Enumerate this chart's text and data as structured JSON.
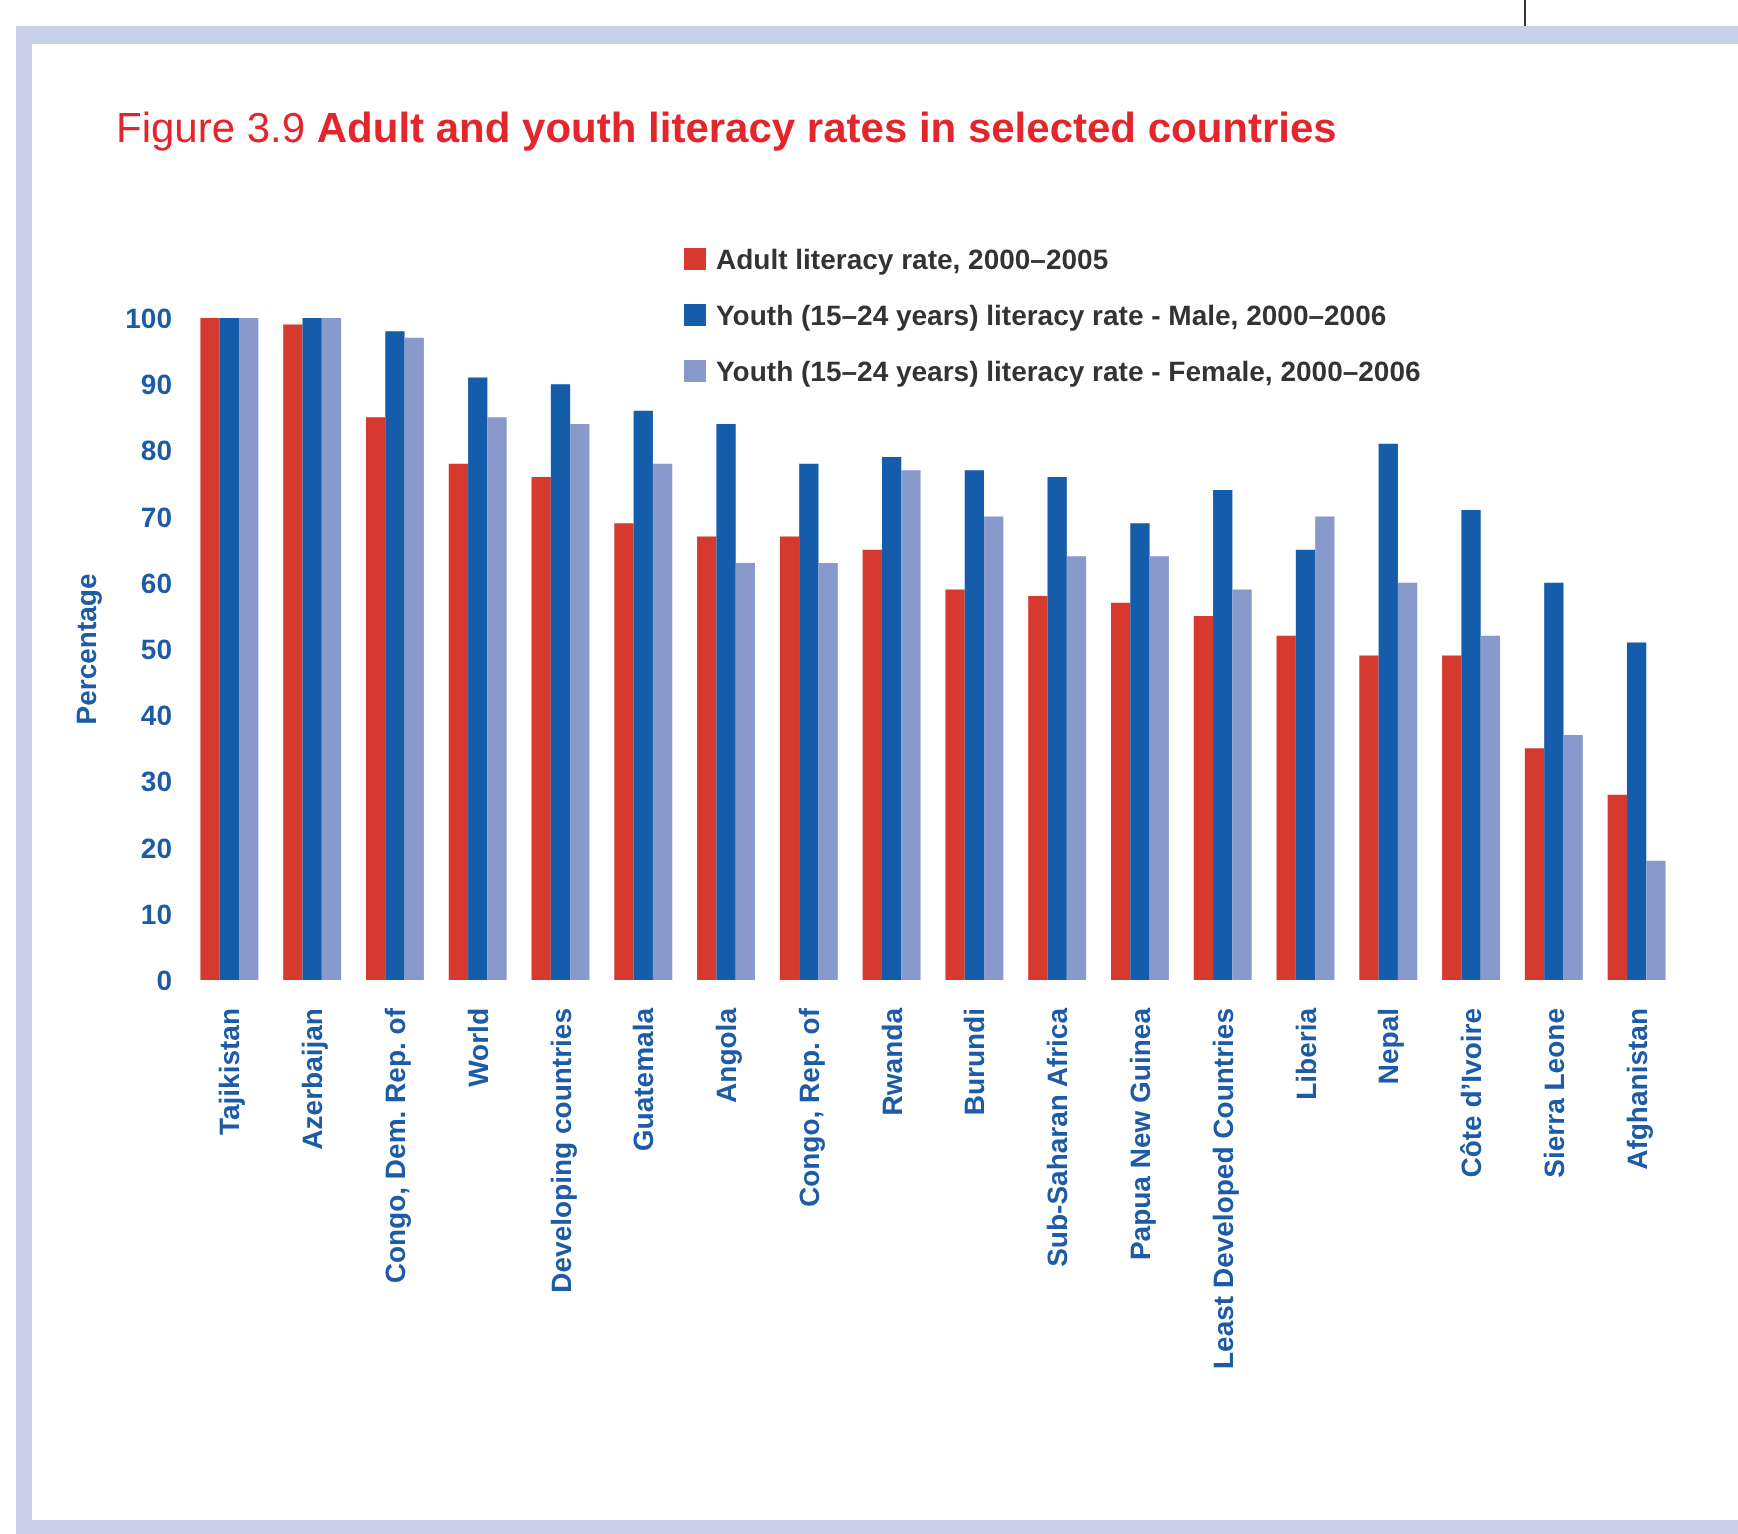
{
  "chart_data": {
    "type": "bar",
    "title": "Figure 3.9 Adult and youth literacy rates in selected countries",
    "ylabel": "Percentage",
    "categories": [
      "Tajikistan",
      "Azerbaijan",
      "Congo, Dem. Rep. of",
      "World",
      "Developing countries",
      "Guatemala",
      "Angola",
      "Congo, Rep. of",
      "Rwanda",
      "Burundi",
      "Sub-Saharan Africa",
      "Papua New Guinea",
      "Least Developed Countries",
      "Liberia",
      "Nepal",
      "Côte d’Ivoire",
      "Sierra Leone",
      "Afghanistan"
    ],
    "series": [
      {
        "name": "Adult literacy rate, 2000–2005",
        "color": "#d63a2f",
        "values": [
          100,
          99,
          85,
          78,
          76,
          69,
          67,
          67,
          65,
          59,
          58,
          57,
          55,
          52,
          49,
          49,
          35,
          28
        ]
      },
      {
        "name": "Youth (15–24 years) literacy rate - Male, 2000–2006",
        "color": "#155caa",
        "values": [
          100,
          100,
          98,
          91,
          90,
          86,
          84,
          78,
          79,
          77,
          76,
          69,
          74,
          65,
          81,
          71,
          60,
          51
        ]
      },
      {
        "name": "Youth (15–24 years) literacy rate - Female, 2000–2006",
        "color": "#8899cc",
        "values": [
          100,
          100,
          97,
          85,
          84,
          78,
          63,
          63,
          77,
          70,
          64,
          64,
          59,
          70,
          60,
          52,
          37,
          18
        ]
      }
    ],
    "ylim": [
      0,
      100
    ],
    "yticks": [
      0,
      10,
      20,
      30,
      40,
      50,
      60,
      70,
      80,
      90,
      100
    ],
    "legend": "top"
  }
}
